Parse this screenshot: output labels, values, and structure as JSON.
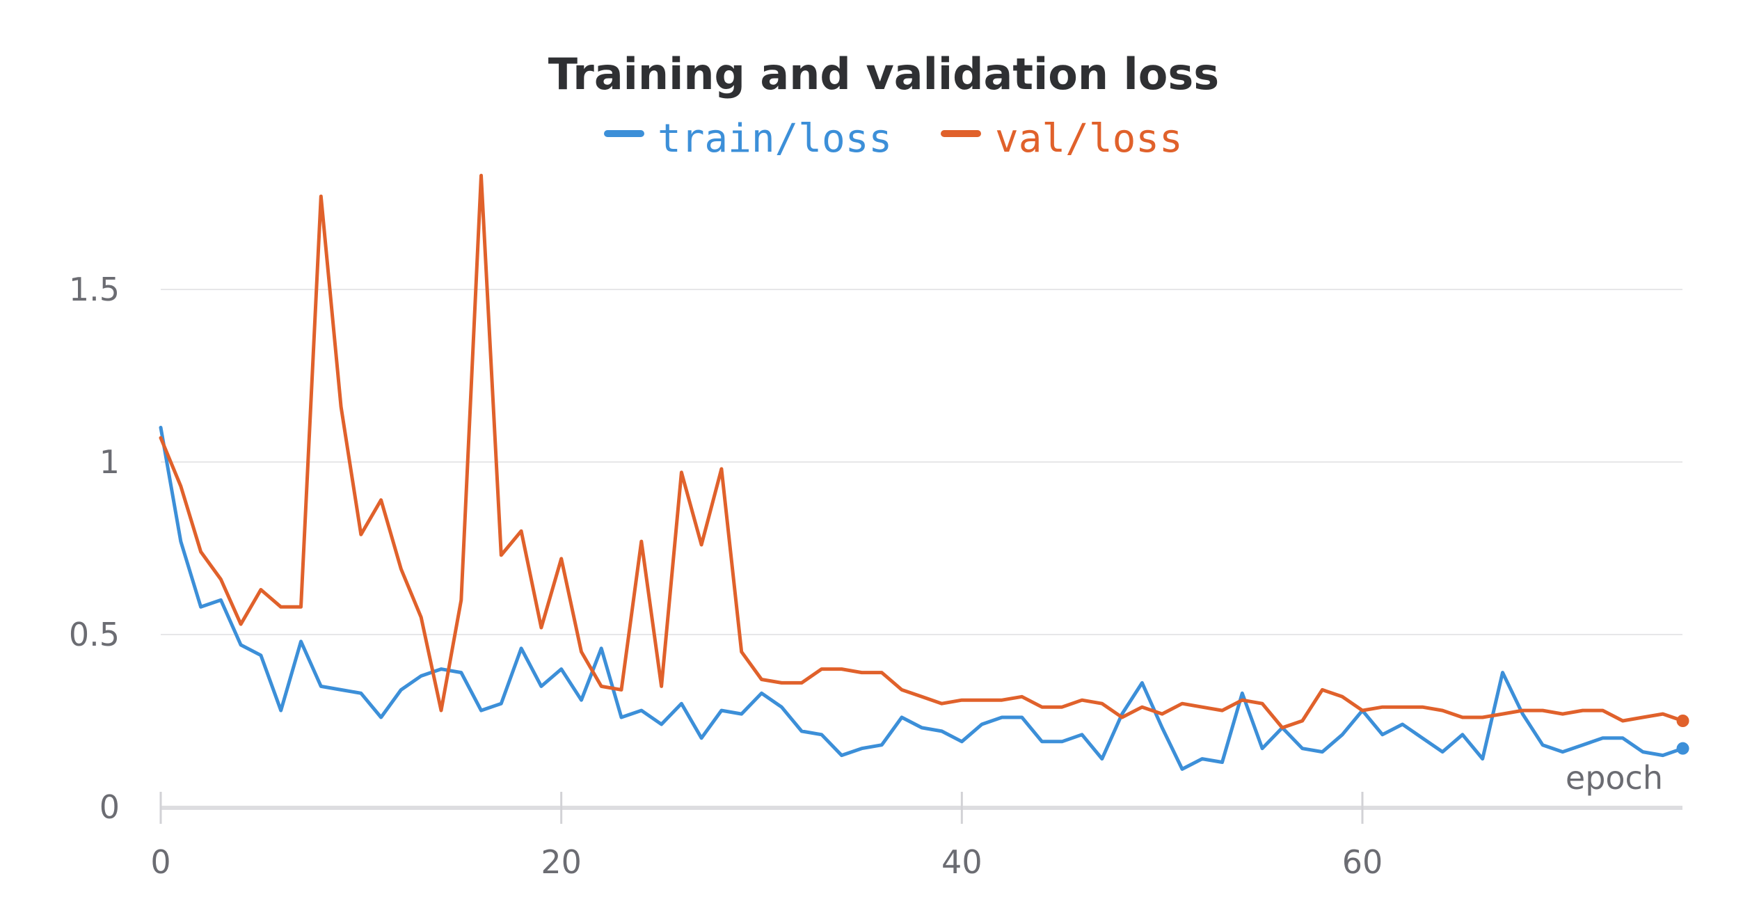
{
  "chart_data": {
    "type": "line",
    "title": "Training and validation loss",
    "xlabel": "epoch",
    "ylabel": "",
    "xlim": [
      0,
      76
    ],
    "ylim": [
      0,
      1.85
    ],
    "xticks": [
      0,
      20,
      40,
      60
    ],
    "yticks": [
      0,
      0.5,
      1,
      1.5
    ],
    "ytick_labels": [
      "0",
      "0.5",
      "1",
      "1.5"
    ],
    "xtick_labels": [
      "0",
      "20",
      "40",
      "60"
    ],
    "grid": true,
    "legend_position": "top-center",
    "series": [
      {
        "name": "train/loss",
        "color": "#3c8fd8",
        "values": [
          1.1,
          0.77,
          0.58,
          0.6,
          0.47,
          0.44,
          0.28,
          0.48,
          0.35,
          0.34,
          0.33,
          0.26,
          0.34,
          0.38,
          0.4,
          0.39,
          0.28,
          0.3,
          0.46,
          0.35,
          0.4,
          0.31,
          0.46,
          0.26,
          0.28,
          0.24,
          0.3,
          0.2,
          0.28,
          0.27,
          0.33,
          0.29,
          0.22,
          0.21,
          0.15,
          0.17,
          0.18,
          0.26,
          0.23,
          0.22,
          0.19,
          0.24,
          0.26,
          0.26,
          0.19,
          0.19,
          0.21,
          0.14,
          0.27,
          0.36,
          0.23,
          0.11,
          0.14,
          0.13,
          0.33,
          0.17,
          0.23,
          0.17,
          0.16,
          0.21,
          0.28,
          0.21,
          0.24,
          0.2,
          0.16,
          0.21,
          0.14,
          0.39,
          0.27,
          0.18,
          0.16,
          0.18,
          0.2,
          0.2,
          0.16,
          0.15,
          0.17
        ]
      },
      {
        "name": "val/loss",
        "color": "#e0612b",
        "values": [
          1.07,
          0.93,
          0.74,
          0.66,
          0.53,
          0.63,
          0.58,
          0.58,
          1.77,
          1.16,
          0.79,
          0.89,
          0.69,
          0.55,
          0.28,
          0.6,
          1.83,
          0.73,
          0.8,
          0.52,
          0.72,
          0.45,
          0.35,
          0.34,
          0.77,
          0.35,
          0.97,
          0.76,
          0.98,
          0.45,
          0.37,
          0.36,
          0.36,
          0.4,
          0.4,
          0.39,
          0.39,
          0.34,
          0.32,
          0.3,
          0.31,
          0.31,
          0.31,
          0.32,
          0.29,
          0.29,
          0.31,
          0.3,
          0.26,
          0.29,
          0.27,
          0.3,
          0.29,
          0.28,
          0.31,
          0.3,
          0.23,
          0.25,
          0.34,
          0.32,
          0.28,
          0.29,
          0.29,
          0.29,
          0.28,
          0.26,
          0.26,
          0.27,
          0.28,
          0.28,
          0.27,
          0.28,
          0.28,
          0.25,
          0.26,
          0.27,
          0.25
        ]
      }
    ]
  }
}
